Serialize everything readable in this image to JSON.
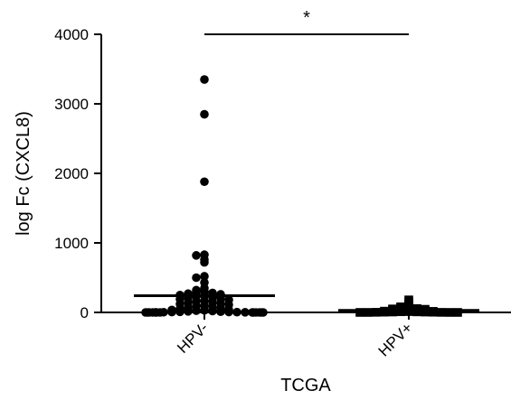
{
  "chart_data": {
    "type": "scatter",
    "title": "",
    "xlabel": "TCGA",
    "ylabel": "log Fc (CXCL8)",
    "ylim": [
      0,
      4000
    ],
    "yticks": [
      0,
      1000,
      2000,
      3000,
      4000
    ],
    "categories": [
      "HPV-",
      "HPV+"
    ],
    "grid": false,
    "series": [
      {
        "category": "HPV-",
        "marker": "circle",
        "mean": 240,
        "values": [
          3350,
          2850,
          1880,
          830,
          820,
          760,
          720,
          520,
          500,
          430,
          350,
          320,
          300,
          290,
          280,
          270,
          260,
          250,
          240,
          230,
          220,
          210,
          200,
          190,
          180,
          170,
          160,
          150,
          140,
          130,
          120,
          110,
          100,
          90,
          80,
          70,
          60,
          50,
          40,
          35,
          30,
          25,
          20,
          15,
          10,
          8,
          6,
          5,
          4,
          3,
          2,
          1,
          0,
          0,
          0,
          0,
          0,
          0,
          0,
          0,
          0,
          0,
          0,
          0
        ]
      },
      {
        "category": "HPV+",
        "marker": "square",
        "mean": 30,
        "values": [
          180,
          150,
          120,
          100,
          80,
          70,
          60,
          55,
          50,
          45,
          40,
          35,
          30,
          25,
          20,
          18,
          15,
          12,
          10,
          8,
          6,
          5,
          4,
          3,
          2,
          1,
          0,
          0,
          0,
          0
        ]
      }
    ],
    "annotation": {
      "text": "*",
      "between": [
        "HPV-",
        "HPV+"
      ],
      "value": 4000
    },
    "colors": {
      "marks": "#000000",
      "axes": "#000000"
    }
  }
}
